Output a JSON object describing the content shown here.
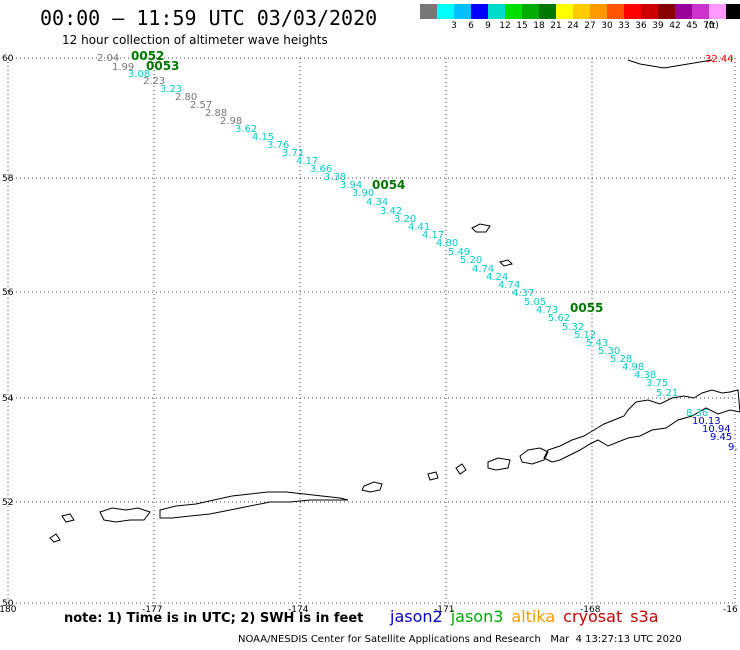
{
  "title": "00:00 – 11:59 UTC 03/03/2020",
  "subtitle": "12 hour collection of altimeter wave heights",
  "color_scale": {
    "units": "(ft)",
    "colors": [
      "#777777",
      "#00ffff",
      "#00c0ff",
      "#0000ff",
      "#00ddcc",
      "#00dd00",
      "#00aa00",
      "#007700",
      "#ffff00",
      "#ffcc00",
      "#ff9900",
      "#ff5500",
      "#ff0000",
      "#cc0000",
      "#880000",
      "#990099",
      "#cc33cc",
      "#ff99ff",
      "#000000"
    ],
    "labels": [
      "",
      "3",
      "6",
      "9",
      "12",
      "15",
      "18",
      "21",
      "24",
      "27",
      "30",
      "33",
      "36",
      "39",
      "42",
      "45",
      "70",
      ""
    ]
  },
  "axes": {
    "lat_ticks": [
      "60",
      "58",
      "56",
      "54",
      "52",
      "50"
    ],
    "lon_ticks": [
      "-180",
      "-177",
      "-174",
      "-171",
      "-168",
      "-16"
    ]
  },
  "passes": [
    "0052",
    "0053",
    "0054",
    "0055"
  ],
  "swh_values": [
    {
      "v": "2.04",
      "c": "#777777"
    },
    {
      "v": "1.99",
      "c": "#777777"
    },
    {
      "v": "3.08",
      "c": "#00cccc"
    },
    {
      "v": "2.23",
      "c": "#777777"
    },
    {
      "v": "3.23",
      "c": "#00cccc"
    },
    {
      "v": "2.80",
      "c": "#777777"
    },
    {
      "v": "2.57",
      "c": "#777777"
    },
    {
      "v": "2.88",
      "c": "#777777"
    },
    {
      "v": "2.98",
      "c": "#777777"
    },
    {
      "v": "3.62",
      "c": "#00cccc"
    },
    {
      "v": "4.15",
      "c": "#00cccc"
    },
    {
      "v": "3.76",
      "c": "#00cccc"
    },
    {
      "v": "3.71",
      "c": "#00cccc"
    },
    {
      "v": "4.17",
      "c": "#00cccc"
    },
    {
      "v": "3.66",
      "c": "#00cccc"
    },
    {
      "v": "3.38",
      "c": "#00cccc"
    },
    {
      "v": "3.94",
      "c": "#00cccc"
    },
    {
      "v": "3.90",
      "c": "#00cccc"
    },
    {
      "v": "4.34",
      "c": "#00cccc"
    },
    {
      "v": "3.42",
      "c": "#00cccc"
    },
    {
      "v": "3.20",
      "c": "#00cccc"
    },
    {
      "v": "4.41",
      "c": "#00cccc"
    },
    {
      "v": "4.17",
      "c": "#00cccc"
    },
    {
      "v": "4.80",
      "c": "#00cccc"
    },
    {
      "v": "5.49",
      "c": "#00cccc"
    },
    {
      "v": "5.20",
      "c": "#00cccc"
    },
    {
      "v": "4.74",
      "c": "#00cccc"
    },
    {
      "v": "4.24",
      "c": "#00cccc"
    },
    {
      "v": "4.74",
      "c": "#00cccc"
    },
    {
      "v": "4.37",
      "c": "#00cccc"
    },
    {
      "v": "5.05",
      "c": "#00cccc"
    },
    {
      "v": "4.73",
      "c": "#00cccc"
    },
    {
      "v": "5.62",
      "c": "#00cccc"
    },
    {
      "v": "5.32",
      "c": "#00cccc"
    },
    {
      "v": "5.12",
      "c": "#00cccc"
    },
    {
      "v": "5.43",
      "c": "#00cccc"
    },
    {
      "v": "5.30",
      "c": "#00cccc"
    },
    {
      "v": "5.28",
      "c": "#00cccc"
    },
    {
      "v": "4.98",
      "c": "#00cccc"
    },
    {
      "v": "4.38",
      "c": "#00cccc"
    },
    {
      "v": "3.75",
      "c": "#00cccc"
    },
    {
      "v": "5.21",
      "c": "#00cccc"
    },
    {
      "v": "8.36",
      "c": "#00cccc"
    },
    {
      "v": "10.13",
      "c": "#0000cc"
    },
    {
      "v": "10.94",
      "c": "#0000cc"
    },
    {
      "v": "9.45",
      "c": "#0000cc"
    },
    {
      "v": "9.",
      "c": "#0000cc"
    }
  ],
  "edge_value": {
    "v": "32.44",
    "c": "#ff0000"
  },
  "note": "note: 1) Time is in UTC; 2) SWH is in feet",
  "satellites": [
    {
      "name": "jason2",
      "color": "#0000cc"
    },
    {
      "name": "jason3",
      "color": "#00aa00"
    },
    {
      "name": "altika",
      "color": "#ff9900"
    },
    {
      "name": "cryosat",
      "color": "#cc0000"
    },
    {
      "name": "s3a",
      "color": "#cc0000"
    }
  ],
  "credit": "NOAA/NESDIS Center for Satellite Applications and Research   Mar  4 13:27:13 UTC 2020"
}
